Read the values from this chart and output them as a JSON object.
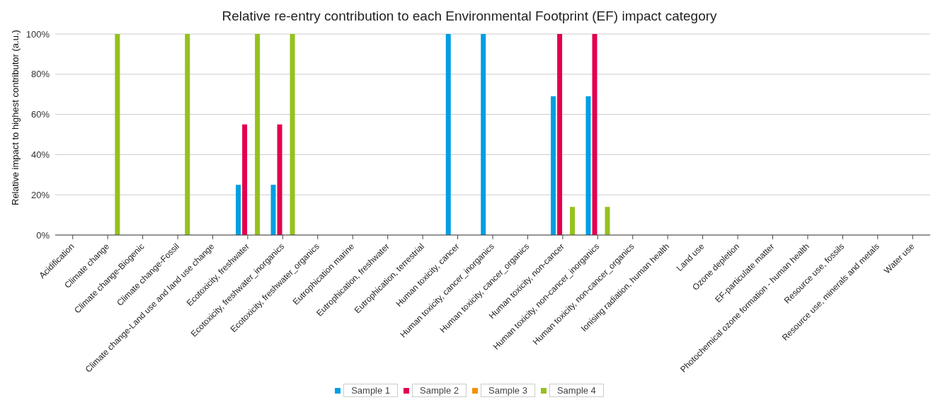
{
  "chart_data": {
    "type": "bar",
    "title": "Relative re-entry contribution to each Environmental Footprint (EF) impact category",
    "ylabel": "Relative impact to highest contributor (a.u.)",
    "categories": [
      "Acidification",
      "Climate change",
      "Climate change-Biogenic",
      "Climate change-Fossil",
      "Climate change-Land use and land use change",
      "Ecotoxicity, freshwater",
      "Ecotoxicity, freshwater_inorganics",
      "Ecotoxicity, freshwater_organics",
      "Eutrophication marine",
      "Eutrophication, freshwater",
      "Eutrophication, terrestrial",
      "Human toxicity, cancer",
      "Human toxicity, cancer_inorganics",
      "Human toxicity, cancer_organics",
      "Human toxicity, non-cancer",
      "Human toxicity, non-cancer_inorganics",
      "Human toxicity, non-cancer_organics",
      "Ionising radiation, human health",
      "Land use",
      "Ozone depletion",
      "EF-particulate matter",
      "Photochemical ozone formation - human health",
      "Resource use, fossils",
      "Resource use, minerals and metals",
      "Water use"
    ],
    "series": [
      {
        "name": "Sample 1",
        "color": "#009fe3",
        "values": [
          0,
          0,
          0,
          0,
          0,
          0.25,
          0.25,
          0,
          0,
          0,
          0,
          1,
          1,
          0,
          0.69,
          0.69,
          0,
          0,
          0,
          0,
          0,
          0,
          0,
          0,
          0
        ]
      },
      {
        "name": "Sample 2",
        "color": "#e2004f",
        "values": [
          0,
          0,
          0,
          0,
          0,
          0.55,
          0.55,
          0,
          0,
          0,
          0,
          0,
          0,
          0,
          1,
          1,
          0,
          0,
          0,
          0,
          0,
          0,
          0,
          0,
          0
        ]
      },
      {
        "name": "Sample 3",
        "color": "#f39200",
        "values": [
          0,
          0,
          0,
          0,
          0,
          0,
          0,
          0,
          0,
          0,
          0,
          0,
          0,
          0,
          0,
          0,
          0,
          0,
          0,
          0,
          0,
          0,
          0,
          0,
          0
        ]
      },
      {
        "name": "Sample 4",
        "color": "#95c11f",
        "values": [
          0,
          1,
          0,
          1,
          0,
          1,
          1,
          0,
          0,
          0,
          0,
          0,
          0,
          0,
          0.14,
          0.14,
          0,
          0,
          0,
          0,
          0,
          0,
          0,
          0,
          0
        ]
      }
    ],
    "ylim": [
      0,
      1
    ],
    "yticks": [
      {
        "value": 0,
        "label": "0%"
      },
      {
        "value": 0.2,
        "label": "20%"
      },
      {
        "value": 0.4,
        "label": "40%"
      },
      {
        "value": 0.6,
        "label": "60%"
      },
      {
        "value": 0.8,
        "label": "80%"
      },
      {
        "value": 1,
        "label": "100%"
      }
    ],
    "grid": "y",
    "legend": "bottom"
  }
}
